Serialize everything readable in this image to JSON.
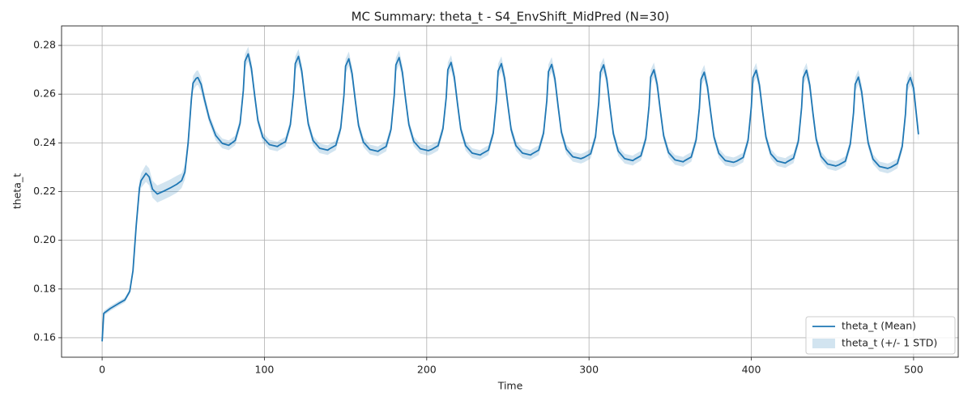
{
  "chart_data": {
    "type": "line",
    "title": "MC Summary: theta_t - S4_EnvShift_MidPred (N=30)",
    "xlabel": "Time",
    "ylabel": "theta_t",
    "xlim": [
      -25,
      527.5
    ],
    "ylim": [
      0.152,
      0.288
    ],
    "xticks": [
      0,
      100,
      200,
      300,
      400,
      500
    ],
    "yticks": [
      0.16,
      0.18,
      {
        "value": 0.2,
        "label": "0.20"
      },
      0.22,
      0.24,
      0.26,
      0.28
    ],
    "grid": true,
    "legend": "lower right",
    "x": [
      0,
      1,
      5,
      10,
      14,
      17,
      19,
      21,
      23,
      24,
      27,
      29,
      31,
      34,
      38,
      42,
      46,
      49,
      51,
      53,
      55,
      56,
      58,
      59,
      61,
      63,
      66,
      70,
      74,
      78,
      82,
      85,
      87,
      88,
      90,
      92,
      94,
      96,
      99,
      103,
      108,
      109,
      113,
      116,
      118,
      119,
      121,
      123,
      125,
      127,
      130,
      134,
      139,
      140,
      144,
      147,
      149,
      150,
      152,
      154,
      156,
      158,
      161,
      165,
      170,
      171,
      175,
      178,
      180,
      181,
      183,
      185,
      187,
      189,
      192,
      196,
      201,
      203,
      207,
      210,
      212,
      213,
      215,
      217,
      219,
      221,
      224,
      228,
      233,
      234,
      238,
      241,
      243,
      244,
      246,
      248,
      250,
      252,
      255,
      259,
      264,
      265,
      269,
      272,
      274,
      275,
      277,
      279,
      281,
      283,
      286,
      290,
      295,
      297,
      301,
      304,
      306,
      307,
      309,
      311,
      313,
      315,
      318,
      322,
      327,
      328,
      332,
      335,
      337,
      338,
      340,
      342,
      344,
      346,
      349,
      353,
      358,
      359,
      363,
      366,
      368,
      369,
      371,
      373,
      375,
      377,
      380,
      384,
      389,
      391,
      395,
      398,
      400,
      401,
      403,
      405,
      407,
      409,
      412,
      416,
      421,
      422,
      426,
      429,
      431,
      432,
      434,
      436,
      438,
      440,
      443,
      447,
      452,
      454,
      458,
      461,
      463,
      464,
      466,
      468,
      470,
      472,
      475,
      479,
      484,
      486,
      490,
      493,
      495,
      496,
      498,
      500,
      503
    ],
    "series": [
      {
        "name": "theta_t (Mean)",
        "color": "#1f77b4",
        "values": [
          0.1585,
          0.17,
          0.172,
          0.174,
          0.1755,
          0.179,
          0.1875,
          0.206,
          0.2215,
          0.2245,
          0.2275,
          0.226,
          0.221,
          0.219,
          0.2202,
          0.2215,
          0.223,
          0.2245,
          0.228,
          0.24,
          0.258,
          0.2645,
          0.2665,
          0.2668,
          0.264,
          0.258,
          0.25,
          0.243,
          0.2398,
          0.239,
          0.241,
          0.248,
          0.2615,
          0.2735,
          0.2765,
          0.2705,
          0.2594,
          0.2491,
          0.2423,
          0.2393,
          0.2385,
          0.239,
          0.2405,
          0.2475,
          0.2607,
          0.2725,
          0.2755,
          0.2695,
          0.2582,
          0.2478,
          0.2409,
          0.2378,
          0.237,
          0.2375,
          0.239,
          0.246,
          0.2595,
          0.2715,
          0.2745,
          0.2685,
          0.2574,
          0.2471,
          0.2403,
          0.2373,
          0.2365,
          0.237,
          0.2385,
          0.2455,
          0.2596,
          0.272,
          0.275,
          0.269,
          0.2578,
          0.2475,
          0.2406,
          0.2376,
          0.2368,
          0.2373,
          0.2388,
          0.2458,
          0.2585,
          0.27,
          0.273,
          0.267,
          0.2559,
          0.2456,
          0.2388,
          0.2358,
          0.235,
          0.2355,
          0.237,
          0.244,
          0.2575,
          0.2695,
          0.2725,
          0.2665,
          0.2556,
          0.2455,
          0.2388,
          0.2358,
          0.235,
          0.2355,
          0.237,
          0.244,
          0.2573,
          0.2692,
          0.2722,
          0.2662,
          0.2548,
          0.2443,
          0.2374,
          0.2343,
          0.2335,
          0.234,
          0.2355,
          0.2425,
          0.2566,
          0.269,
          0.272,
          0.266,
          0.2543,
          0.2437,
          0.2366,
          0.2335,
          0.2327,
          0.2332,
          0.2347,
          0.2417,
          0.2551,
          0.267,
          0.27,
          0.264,
          0.253,
          0.2428,
          0.236,
          0.233,
          0.2322,
          0.2327,
          0.2342,
          0.2412,
          0.2543,
          0.266,
          0.269,
          0.263,
          0.2524,
          0.2424,
          0.2357,
          0.2327,
          0.232,
          0.2325,
          0.234,
          0.241,
          0.2547,
          0.2668,
          0.2698,
          0.2638,
          0.2527,
          0.2424,
          0.2355,
          0.2325,
          0.2317,
          0.2322,
          0.2337,
          0.2407,
          0.2546,
          0.2668,
          0.2698,
          0.2638,
          0.2521,
          0.2415,
          0.2344,
          0.2313,
          0.2305,
          0.231,
          0.2325,
          0.2395,
          0.2524,
          0.264,
          0.267,
          0.261,
          0.2501,
          0.24,
          0.2333,
          0.2303,
          0.2295,
          0.23,
          0.2315,
          0.2385,
          0.2519,
          0.2638,
          0.2668,
          0.2625,
          0.2435
        ]
      },
      {
        "name": "theta_t (+/- 1 STD)",
        "color": "#1f77b4",
        "alpha": 0.2,
        "std": [
          0.0005,
          0.001,
          0.001,
          0.001,
          0.001,
          0.001,
          0.0015,
          0.002,
          0.003,
          0.003,
          0.0035,
          0.0035,
          0.0035,
          0.0035,
          0.0035,
          0.0035,
          0.0035,
          0.003,
          0.003,
          0.003,
          0.003,
          0.003,
          0.003,
          0.003,
          0.003,
          0.0025,
          0.002,
          0.002,
          0.002,
          0.002,
          0.002,
          0.002,
          0.0025,
          0.003,
          0.003,
          0.003,
          0.0025,
          0.002,
          0.002,
          0.002,
          0.002,
          0.002,
          0.002,
          0.002,
          0.0025,
          0.003,
          0.003,
          0.003,
          0.0025,
          0.002,
          0.002,
          0.002,
          0.002,
          0.002,
          0.002,
          0.002,
          0.0025,
          0.003,
          0.003,
          0.003,
          0.0025,
          0.002,
          0.002,
          0.002,
          0.002,
          0.002,
          0.002,
          0.002,
          0.0025,
          0.003,
          0.003,
          0.003,
          0.0025,
          0.002,
          0.002,
          0.002,
          0.002,
          0.002,
          0.002,
          0.002,
          0.0025,
          0.003,
          0.003,
          0.003,
          0.0025,
          0.002,
          0.002,
          0.002,
          0.002,
          0.002,
          0.002,
          0.002,
          0.0025,
          0.003,
          0.003,
          0.003,
          0.0025,
          0.002,
          0.002,
          0.002,
          0.002,
          0.002,
          0.002,
          0.002,
          0.0025,
          0.003,
          0.003,
          0.003,
          0.0025,
          0.002,
          0.002,
          0.002,
          0.002,
          0.002,
          0.002,
          0.002,
          0.0025,
          0.003,
          0.003,
          0.003,
          0.0025,
          0.002,
          0.002,
          0.002,
          0.002,
          0.002,
          0.002,
          0.002,
          0.0025,
          0.003,
          0.003,
          0.003,
          0.0025,
          0.002,
          0.002,
          0.002,
          0.002,
          0.002,
          0.002,
          0.002,
          0.0025,
          0.003,
          0.003,
          0.003,
          0.0025,
          0.002,
          0.002,
          0.002,
          0.002,
          0.002,
          0.002,
          0.002,
          0.0025,
          0.003,
          0.003,
          0.003,
          0.0025,
          0.002,
          0.002,
          0.002,
          0.002,
          0.002,
          0.002,
          0.002,
          0.0025,
          0.003,
          0.003,
          0.003,
          0.0025,
          0.002,
          0.002,
          0.002,
          0.002,
          0.002,
          0.002,
          0.002,
          0.0025,
          0.003,
          0.003,
          0.003,
          0.0025,
          0.002,
          0.002,
          0.002,
          0.002,
          0.002,
          0.002,
          0.002,
          0.0025,
          0.003,
          0.003,
          0.003,
          0.003
        ]
      }
    ]
  }
}
